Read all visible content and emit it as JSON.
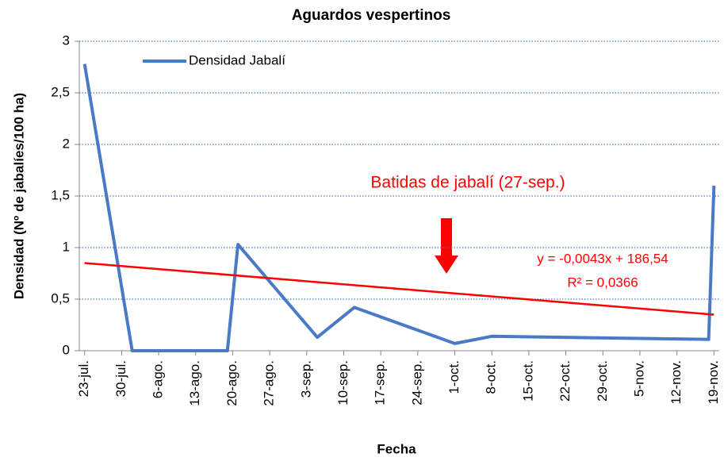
{
  "chart_data": {
    "type": "line",
    "title": "Aguardos vespertinos",
    "xlabel": "Fecha",
    "ylabel": "Densidad  (Nº de jabalíes/100  ha)",
    "annotation": "Batidas de jabalí (27-sep.)",
    "series": [
      {
        "name": "Densidad Jabalí",
        "color": "#4a7ac7",
        "x": [
          0,
          9,
          27,
          29,
          44,
          51,
          70,
          77,
          118,
          119
        ],
        "values": [
          2.78,
          0,
          0,
          1.03,
          0.13,
          0.42,
          0.07,
          0.14,
          0.11,
          1.6
        ]
      }
    ],
    "trendline": {
      "color": "#ff0000",
      "x": [
        0,
        119
      ],
      "values": [
        0.85,
        0.35
      ],
      "equation": "y = -0,0043x + 186,54",
      "r2": "R² = 0,0366"
    },
    "xlim": [
      -1,
      120
    ],
    "xticks": [
      {
        "value": 0,
        "label": "23-jul."
      },
      {
        "value": 7,
        "label": "30-jul."
      },
      {
        "value": 14,
        "label": "6-ago."
      },
      {
        "value": 21,
        "label": "13-ago."
      },
      {
        "value": 28,
        "label": "20-ago."
      },
      {
        "value": 35,
        "label": "27-ago."
      },
      {
        "value": 42,
        "label": "3-sep."
      },
      {
        "value": 49,
        "label": "10-sep."
      },
      {
        "value": 56,
        "label": "17-sep."
      },
      {
        "value": 63,
        "label": "24-sep."
      },
      {
        "value": 70,
        "label": "1-oct."
      },
      {
        "value": 77,
        "label": "8-oct."
      },
      {
        "value": 84,
        "label": "15-oct."
      },
      {
        "value": 91,
        "label": "22-oct."
      },
      {
        "value": 98,
        "label": "29-oct."
      },
      {
        "value": 105,
        "label": "5-nov."
      },
      {
        "value": 112,
        "label": "12-nov."
      },
      {
        "value": 119,
        "label": "19-nov."
      }
    ],
    "ylim": [
      0,
      3
    ],
    "yticks": [
      0,
      {
        "value": 0.5,
        "label": "0,5"
      },
      1,
      {
        "value": 1.5,
        "label": "1,5"
      },
      2,
      {
        "value": 2.5,
        "label": "2,5"
      },
      3
    ],
    "grid": true,
    "legend": "top-left"
  }
}
